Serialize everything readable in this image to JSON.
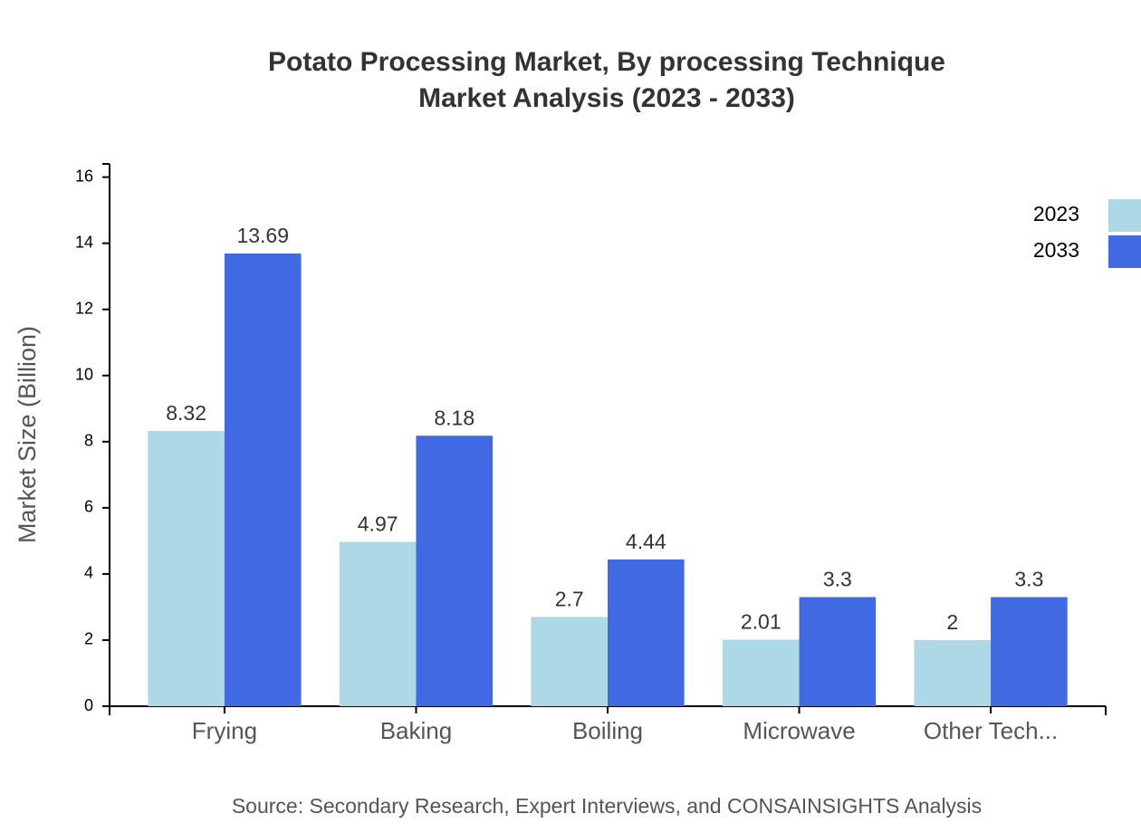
{
  "chart_data": {
    "type": "bar",
    "title": "Potato Processing Market, By processing Technique",
    "subtitle": "Market Analysis (2023 - 2033)",
    "y_label": "Market Size (Billion)",
    "source": "Source: Secondary Research, Expert Interviews, and CONSAINSIGHTS Analysis",
    "categories": [
      "Frying",
      "Baking",
      "Boiling",
      "Microwave",
      "Other Tech..."
    ],
    "series": [
      {
        "name": "2023",
        "color": "#add8e6",
        "values": [
          8.32,
          4.97,
          2.7,
          2.01,
          2
        ]
      },
      {
        "name": "2033",
        "color": "#4169e1",
        "values": [
          13.69,
          8.18,
          4.44,
          3.3,
          3.3
        ]
      }
    ],
    "ylim": [
      0,
      16.4
    ],
    "yticks": [
      0,
      2,
      4,
      6,
      8,
      10,
      12,
      14,
      16
    ],
    "grid": false,
    "legend": "top-right"
  }
}
